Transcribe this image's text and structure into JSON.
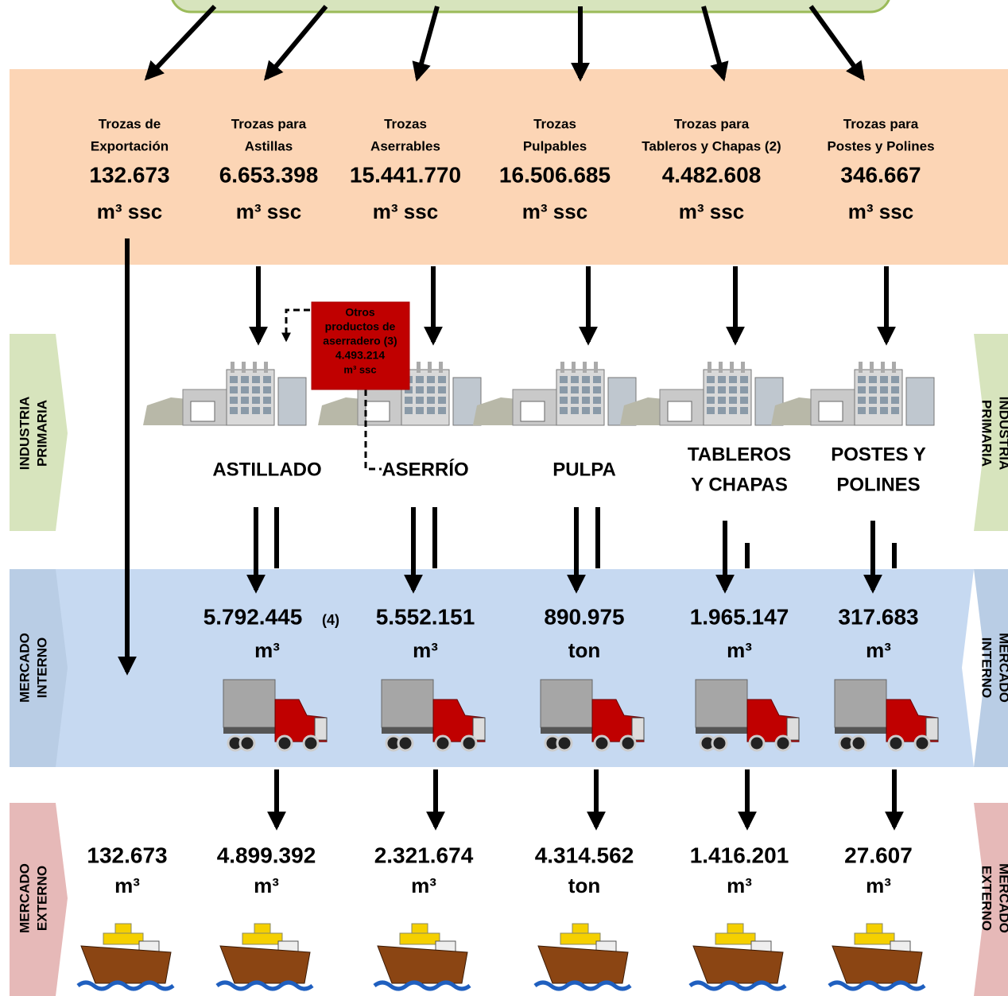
{
  "top_products": [
    {
      "label": [
        "Trozas de",
        "Exportación"
      ],
      "value": "132.673",
      "unit": "m³ ssc"
    },
    {
      "label": [
        "Trozas para",
        "Astillas"
      ],
      "value": "6.653.398",
      "unit": "m³ ssc"
    },
    {
      "label": [
        "Trozas",
        "Aserrables"
      ],
      "value": "15.441.770",
      "unit": "m³ ssc"
    },
    {
      "label": [
        "Trozas",
        "Pulpables"
      ],
      "value": "16.506.685",
      "unit": "m³ ssc"
    },
    {
      "label": [
        "Trozas para",
        "Tableros y Chapas (2)"
      ],
      "value": "4.482.608",
      "unit": "m³ ssc"
    },
    {
      "label": [
        "Trozas para",
        "Postes y Polines"
      ],
      "value": "346.667",
      "unit": "m³ ssc"
    }
  ],
  "byproduct": {
    "lines": [
      "Otros",
      "productos de",
      "aserradero (3)"
    ],
    "value": "4.493.214",
    "unit": "m³ ssc"
  },
  "bands": {
    "industria": [
      "INDUSTRIA",
      "PRIMARIA"
    ],
    "interno": [
      "MERCADO",
      "INTERNO"
    ],
    "externo": [
      "MERCADO",
      "EXTERNO"
    ]
  },
  "industries": [
    [
      "ASTILLADO"
    ],
    [
      "ASERRÍO"
    ],
    [
      "PULPA"
    ],
    [
      "TABLEROS",
      "Y CHAPAS"
    ],
    [
      "POSTES Y",
      "POLINES"
    ]
  ],
  "internal": [
    {
      "value": "5.792.445",
      "note": "(4)",
      "unit": "m³"
    },
    {
      "value": "5.552.151",
      "unit": "m³"
    },
    {
      "value": "890.975",
      "unit": "ton"
    },
    {
      "value": "1.965.147",
      "unit": "m³"
    },
    {
      "value": "317.683",
      "unit": "m³"
    }
  ],
  "external": [
    {
      "value": "132.673",
      "unit": "m³"
    },
    {
      "value": "4.899.392",
      "unit": "m³"
    },
    {
      "value": "2.321.674",
      "unit": "m³"
    },
    {
      "value": "4.314.562",
      "unit": "ton"
    },
    {
      "value": "1.416.201",
      "unit": "m³"
    },
    {
      "value": "27.607",
      "unit": "m³"
    }
  ]
}
